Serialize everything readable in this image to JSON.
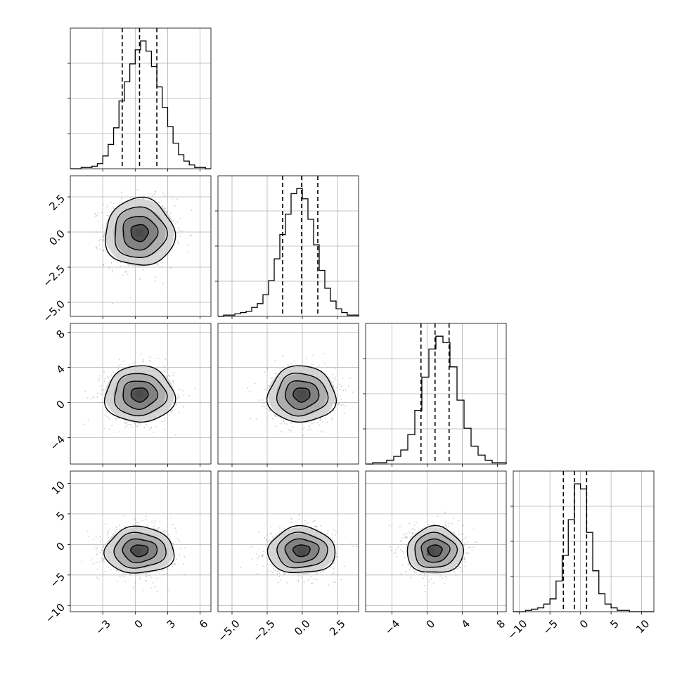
{
  "chart_data": {
    "type": "corner",
    "grid": true,
    "colors": {
      "line": "#000000",
      "grid": "#b0b0b0",
      "points": "#a0a0a0",
      "density_levels": [
        "#f0f0f0",
        "#cfcfcf",
        "#a8a8a8",
        "#7a7a7a",
        "#4a4a4a"
      ]
    },
    "parameters": [
      {
        "index": 0,
        "range": [
          -6,
          7
        ],
        "ticks": [
          -3,
          0,
          3,
          6
        ],
        "tick_labels": [
          "−3",
          "0",
          "3",
          "6"
        ],
        "mean": 0.4,
        "sigma": 1.6,
        "quantiles": [
          -1.2,
          0.4,
          2.0
        ]
      },
      {
        "index": 1,
        "range": [
          -6,
          4
        ],
        "ticks": [
          -5.0,
          -2.5,
          0.0,
          2.5
        ],
        "tick_labels": [
          "−5.0",
          "−2.5",
          "0.0",
          "2.5"
        ],
        "mean": -0.05,
        "sigma": 1.2,
        "quantiles": [
          -1.4,
          -0.05,
          1.1
        ]
      },
      {
        "index": 2,
        "range": [
          -7,
          9
        ],
        "ticks": [
          -4,
          0,
          4,
          8
        ],
        "tick_labels": [
          "−4",
          "0",
          "4",
          "8"
        ],
        "mean": 0.9,
        "sigma": 1.6,
        "quantiles": [
          -0.7,
          0.9,
          2.5
        ]
      },
      {
        "index": 3,
        "range": [
          -11,
          12
        ],
        "ticks": [
          -10,
          -5,
          0,
          5,
          10
        ],
        "tick_labels": [
          "−10",
          "−5",
          "0",
          "5",
          "10"
        ],
        "mean": -1.0,
        "sigma": 1.9,
        "quantiles": [
          -2.8,
          -1.0,
          1.0
        ]
      }
    ],
    "histograms": [
      {
        "param": 0,
        "bins": [
          -6,
          -5.5,
          -5,
          -4.5,
          -4,
          -3.5,
          -3,
          -2.5,
          -2,
          -1.5,
          -1,
          -0.5,
          0,
          0.5,
          1,
          1.5,
          2,
          2.5,
          3,
          3.5,
          4,
          4.5,
          5,
          5.5,
          6,
          6.5,
          7
        ],
        "counts": [
          0,
          0,
          1,
          1,
          2,
          4,
          10,
          19,
          32,
          53,
          68,
          82,
          93,
          100,
          92,
          80,
          64,
          48,
          33,
          20,
          11,
          6,
          3,
          1,
          1,
          0
        ]
      },
      {
        "param": 1,
        "bins": [
          -6,
          -5.6,
          -5.2,
          -4.8,
          -4.4,
          -4,
          -3.6,
          -3.2,
          -2.8,
          -2.4,
          -2,
          -1.6,
          -1.2,
          -0.8,
          -0.4,
          0,
          0.4,
          0.8,
          1.2,
          1.6,
          2,
          2.4,
          2.8,
          3.2,
          3.6,
          4
        ],
        "counts": [
          0,
          1,
          1,
          2,
          3,
          4,
          7,
          10,
          17,
          28,
          45,
          64,
          80,
          96,
          100,
          92,
          76,
          56,
          36,
          22,
          12,
          6,
          3,
          1,
          1
        ]
      },
      {
        "param": 2,
        "bins": [
          -7,
          -6.2,
          -5.4,
          -4.6,
          -3.8,
          -3,
          -2.2,
          -1.4,
          -0.6,
          0.2,
          1,
          1.8,
          2.6,
          3.4,
          4.2,
          5,
          5.8,
          6.6,
          7.4,
          8.2,
          9
        ],
        "counts": [
          0,
          1,
          1,
          3,
          6,
          11,
          23,
          42,
          68,
          90,
          100,
          95,
          76,
          50,
          28,
          14,
          7,
          3,
          1,
          1
        ]
      },
      {
        "param": 3,
        "bins": [
          -11,
          -10,
          -9,
          -8,
          -7,
          -6,
          -5,
          -4,
          -3,
          -2,
          -1,
          0,
          1,
          2,
          3,
          4,
          5,
          6,
          7,
          8,
          9,
          10,
          11,
          12
        ],
        "counts": [
          0,
          0,
          1,
          2,
          3,
          6,
          10,
          24,
          44,
          72,
          100,
          96,
          62,
          32,
          14,
          6,
          3,
          1,
          1,
          0,
          0,
          0,
          0
        ]
      }
    ],
    "pairs": [
      {
        "x_param": 0,
        "y_param": 1,
        "center": [
          0.4,
          -0.05
        ],
        "spread": [
          1.6,
          1.2
        ],
        "contour_sigma": [
          0.5,
          1.0,
          1.5,
          2.0
        ],
        "peak": [
          0.4,
          -0.05
        ]
      },
      {
        "x_param": 0,
        "y_param": 2,
        "center": [
          0.4,
          0.9
        ],
        "spread": [
          1.6,
          1.6
        ],
        "contour_sigma": [
          0.5,
          1.0,
          1.5,
          2.0
        ],
        "peak": [
          0.4,
          1.0
        ]
      },
      {
        "x_param": 1,
        "y_param": 2,
        "center": [
          -0.05,
          0.9
        ],
        "spread": [
          1.2,
          1.6
        ],
        "contour_sigma": [
          0.5,
          1.0,
          1.5,
          2.0
        ],
        "peak": [
          -0.05,
          0.9
        ]
      },
      {
        "x_param": 0,
        "y_param": 3,
        "center": [
          0.4,
          -1.0
        ],
        "spread": [
          1.6,
          1.9
        ],
        "contour_sigma": [
          0.5,
          1.0,
          1.5,
          2.0
        ],
        "peak": [
          0.2,
          -1.2
        ]
      },
      {
        "x_param": 1,
        "y_param": 3,
        "center": [
          -0.05,
          -1.0
        ],
        "spread": [
          1.2,
          1.9
        ],
        "contour_sigma": [
          0.5,
          1.0,
          1.5,
          2.0
        ],
        "peak": [
          -0.05,
          -1.3
        ]
      },
      {
        "x_param": 2,
        "y_param": 3,
        "center": [
          0.9,
          -1.0
        ],
        "spread": [
          1.6,
          1.9
        ],
        "contour_sigma": [
          0.5,
          1.0,
          1.5,
          2.0
        ],
        "peak": [
          0.4,
          -1.2
        ]
      }
    ]
  }
}
